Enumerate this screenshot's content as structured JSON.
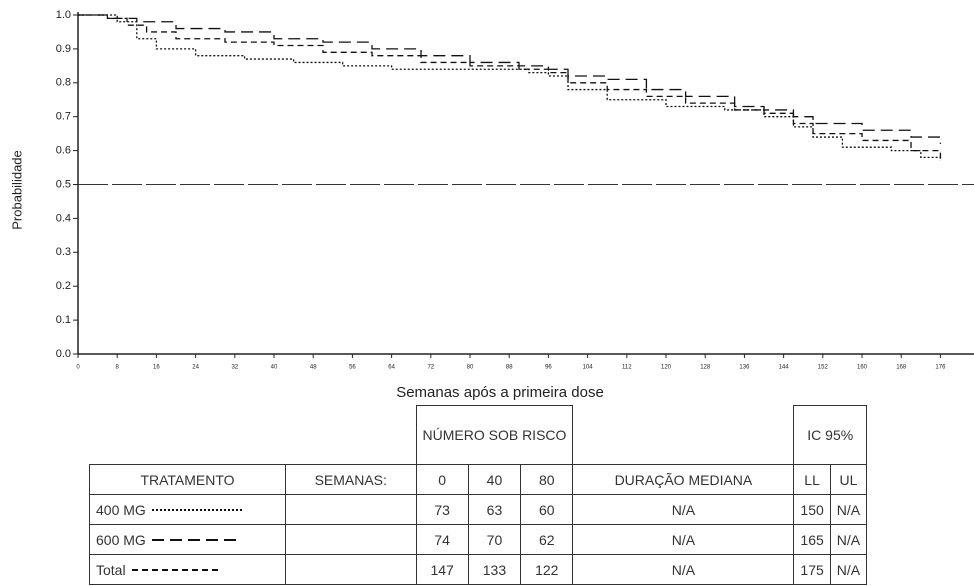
{
  "chart_data": {
    "type": "step",
    "x_label": "Semanas após a primeira dose",
    "y_label": "Probabilidade",
    "xlim": [
      0,
      180
    ],
    "ylim": [
      0,
      1
    ],
    "xticks": [
      0,
      8,
      16,
      24,
      32,
      40,
      48,
      56,
      64,
      72,
      80,
      88,
      96,
      104,
      112,
      120,
      128,
      136,
      144,
      152,
      160,
      168,
      176
    ],
    "yticks": [
      {
        "value": 0,
        "label": "0.0"
      },
      {
        "value": 0.1,
        "label": "0.1"
      },
      {
        "value": 0.2,
        "label": "0.2"
      },
      {
        "value": 0.3,
        "label": "0.3"
      },
      {
        "value": 0.4,
        "label": "0.4"
      },
      {
        "value": 0.5,
        "label": "0.5"
      },
      {
        "value": 0.6,
        "label": "0.6"
      },
      {
        "value": 0.7,
        "label": "0.7"
      },
      {
        "value": 0.8,
        "label": "0.8"
      },
      {
        "value": 0.9,
        "label": "0.9"
      },
      {
        "value": 1,
        "label": "1.0"
      }
    ],
    "reference_line": 0.5,
    "series": [
      {
        "name": "400 MG",
        "color": "#111111",
        "dash": "2,2",
        "x": [
          0,
          8,
          12,
          16,
          24,
          34,
          44,
          54,
          64,
          80,
          92,
          96,
          100,
          108,
          120,
          132,
          140,
          146,
          150,
          156,
          166,
          172,
          176
        ],
        "values": [
          1,
          0.98,
          0.93,
          0.9,
          0.88,
          0.87,
          0.86,
          0.85,
          0.84,
          0.84,
          0.83,
          0.82,
          0.78,
          0.75,
          0.73,
          0.72,
          0.7,
          0.67,
          0.64,
          0.61,
          0.6,
          0.58,
          0.57
        ]
      },
      {
        "name": "600 MG",
        "color": "#111111",
        "dash": "12,6",
        "x": [
          0,
          6,
          12,
          20,
          30,
          40,
          50,
          60,
          70,
          80,
          90,
          96,
          100,
          108,
          116,
          124,
          134,
          140,
          146,
          150,
          160,
          170,
          176
        ],
        "values": [
          1,
          0.99,
          0.98,
          0.96,
          0.95,
          0.93,
          0.92,
          0.9,
          0.88,
          0.86,
          0.85,
          0.84,
          0.82,
          0.81,
          0.78,
          0.76,
          0.73,
          0.72,
          0.7,
          0.68,
          0.66,
          0.64,
          0.62
        ]
      },
      {
        "name": "Total",
        "color": "#111111",
        "dash": "6,4",
        "x": [
          0,
          6,
          10,
          14,
          20,
          30,
          40,
          50,
          60,
          70,
          80,
          90,
          96,
          100,
          108,
          116,
          124,
          134,
          140,
          146,
          150,
          160,
          170,
          176
        ],
        "values": [
          1,
          0.99,
          0.97,
          0.95,
          0.93,
          0.92,
          0.91,
          0.89,
          0.88,
          0.86,
          0.85,
          0.84,
          0.83,
          0.8,
          0.78,
          0.76,
          0.74,
          0.72,
          0.71,
          0.68,
          0.65,
          0.63,
          0.6,
          0.57
        ]
      }
    ]
  },
  "table": {
    "group_at_risk": "NÚMERO SOB RISCO",
    "group_ci": "IC 95%",
    "columns": [
      "TRATAMENTO",
      "SEMANAS:",
      "0",
      "40",
      "80",
      "DURAÇÃO  MEDIANA",
      "LL",
      "UL"
    ],
    "rows": [
      {
        "at_risk": [
          73,
          63,
          60
        ],
        "median": "N/A",
        "ll": 150,
        "ul": "N/A"
      },
      {
        "at_risk": [
          74,
          70,
          62
        ],
        "median": "N/A",
        "ll": 165,
        "ul": "N/A"
      },
      {
        "at_risk": [
          147,
          133,
          122
        ],
        "median": "N/A",
        "ll": 175,
        "ul": "N/A"
      }
    ]
  }
}
